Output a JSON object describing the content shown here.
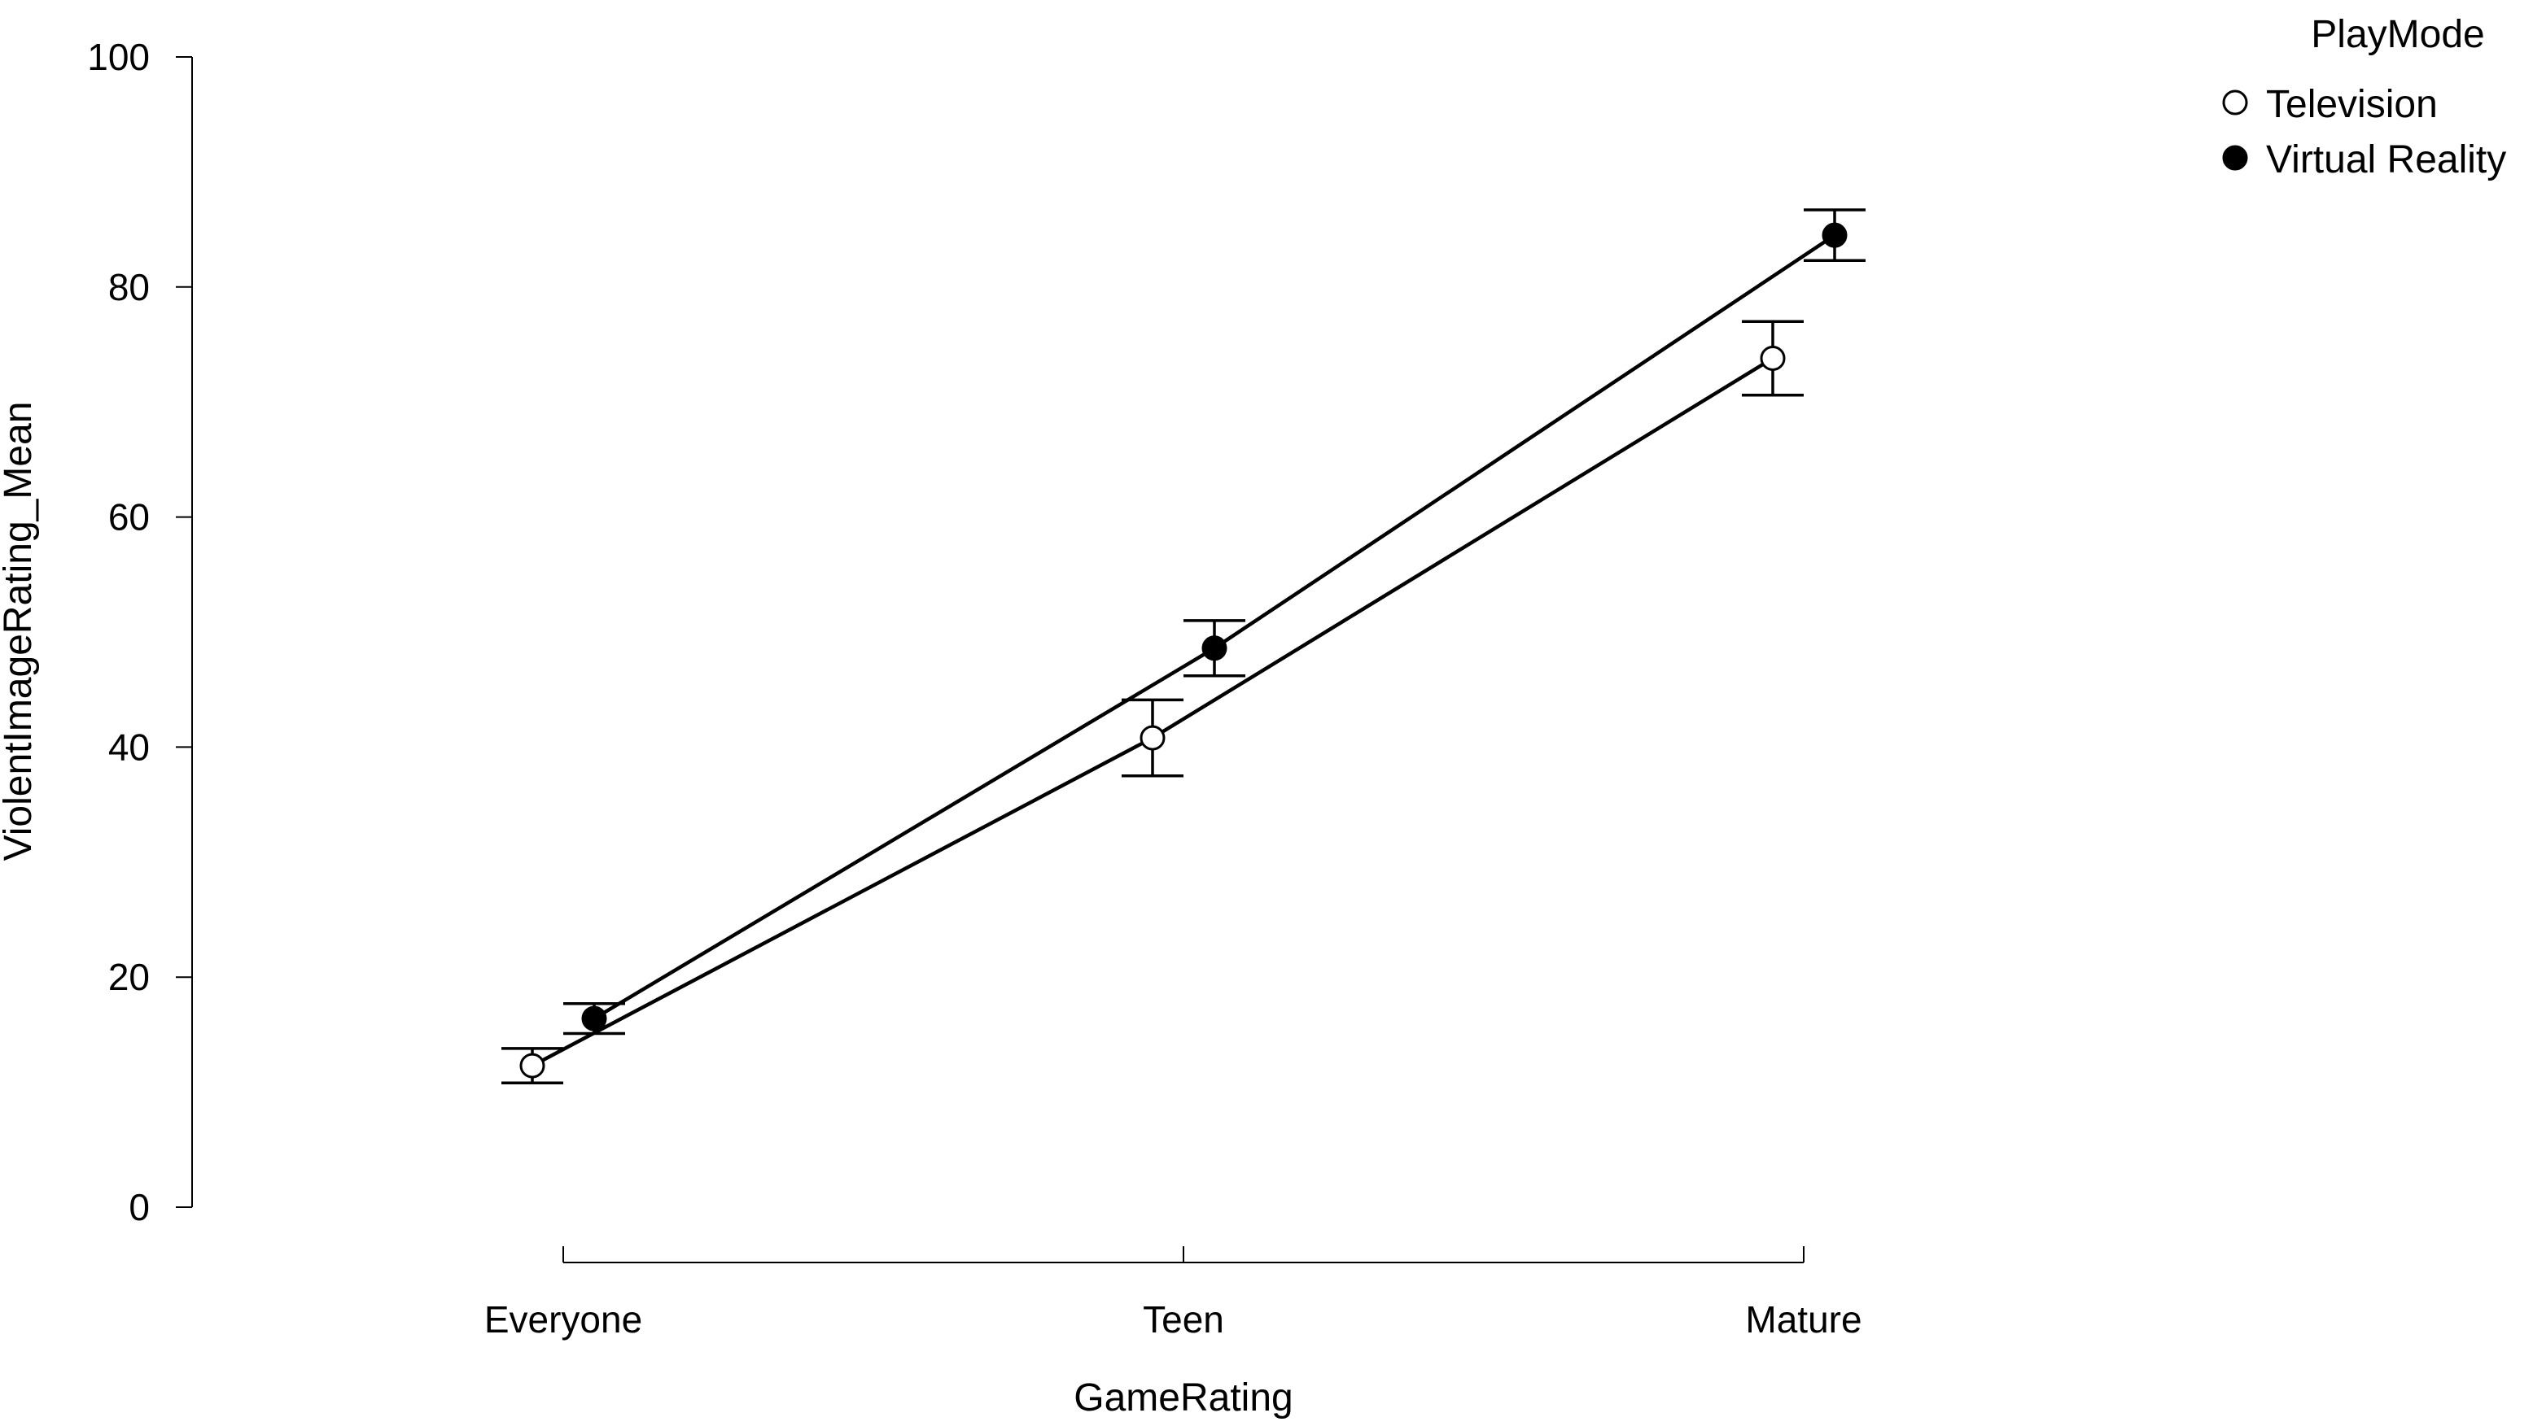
{
  "chart_data": {
    "type": "line",
    "xlabel": "GameRating",
    "ylabel": "ViolentImageRating_Mean",
    "categories": [
      "Everyone",
      "Teen",
      "Mature"
    ],
    "ylim": [
      0,
      100
    ],
    "yticks": [
      0,
      20,
      40,
      60,
      80,
      100
    ],
    "grid": false,
    "legend": {
      "title": "PlayMode",
      "placement": "top-right"
    },
    "series": [
      {
        "name": "Television",
        "marker": "open-circle",
        "fill": "#ffffff",
        "values": [
          12.3,
          40.8,
          73.8
        ],
        "err_low": [
          10.8,
          37.5,
          70.6
        ],
        "err_high": [
          13.8,
          44.1,
          77.0
        ]
      },
      {
        "name": "Virtual Reality",
        "marker": "filled-circle",
        "fill": "#000000",
        "values": [
          16.4,
          48.6,
          84.5
        ],
        "err_low": [
          15.1,
          46.2,
          82.3
        ],
        "err_high": [
          17.7,
          51.0,
          86.7
        ]
      }
    ]
  }
}
